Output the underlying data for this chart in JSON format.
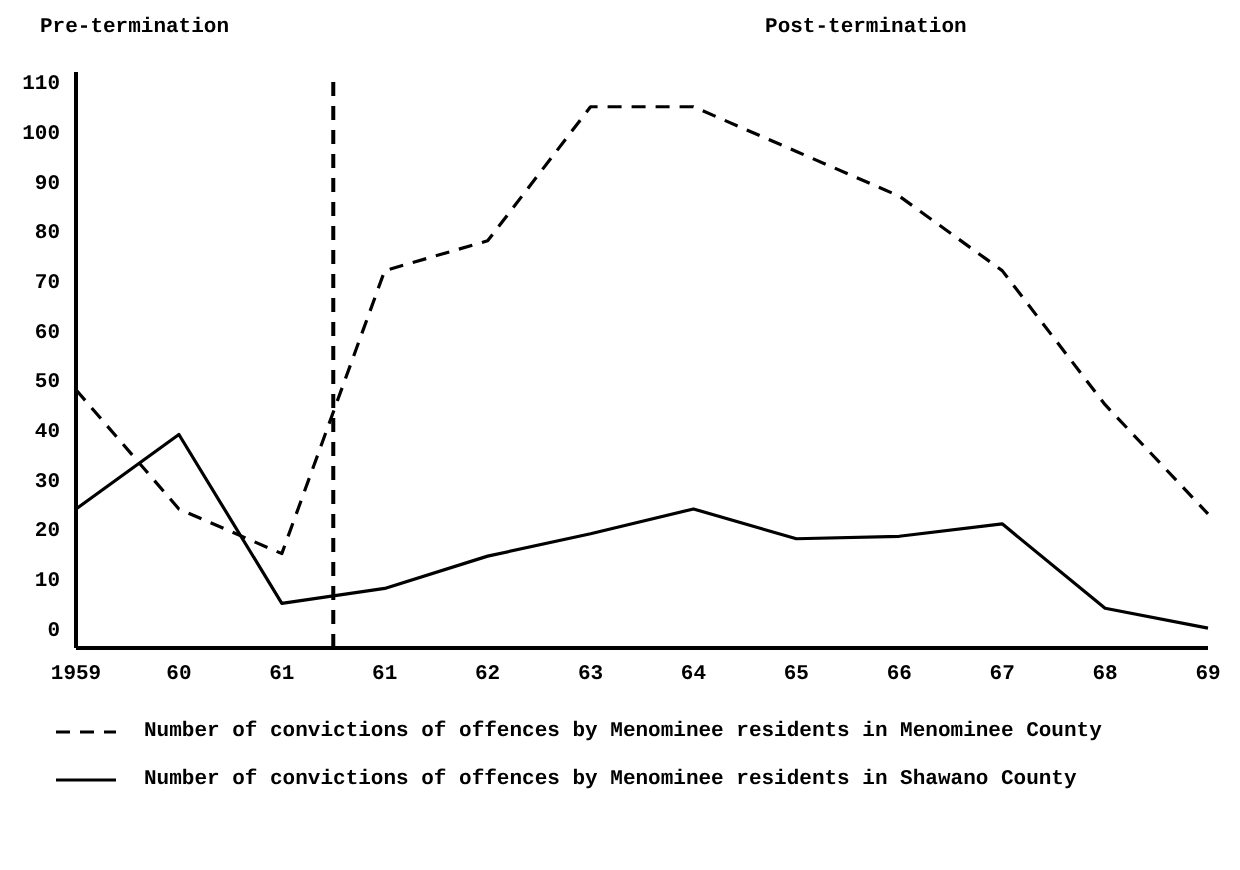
{
  "chart_data": {
    "type": "line",
    "annotations": [
      "Pre-termination",
      "Post-termination"
    ],
    "categories": [
      "1959",
      "60",
      "61",
      "61",
      "62",
      "63",
      "64",
      "65",
      "66",
      "67",
      "68",
      "69"
    ],
    "series": [
      {
        "name": "Number of convictions of offences by Menominee residents in Menominee County",
        "color": "#000000",
        "line_style": "dashed",
        "values": [
          48,
          24,
          15,
          72,
          78,
          105,
          105,
          96,
          87,
          72,
          45,
          23
        ]
      },
      {
        "name": "Number of convictions of offences by Menominee residents in Shawano County",
        "color": "#000000",
        "line_style": "solid",
        "values": [
          24,
          39,
          5,
          8,
          14.5,
          19,
          24,
          18,
          18.5,
          21,
          4,
          0
        ]
      }
    ],
    "ylim": [
      -4,
      112
    ],
    "yticks": [
      0,
      10,
      20,
      30,
      40,
      50,
      60,
      70,
      80,
      90,
      100,
      110
    ],
    "grid": false,
    "legend": "bottom",
    "marker": "none"
  }
}
